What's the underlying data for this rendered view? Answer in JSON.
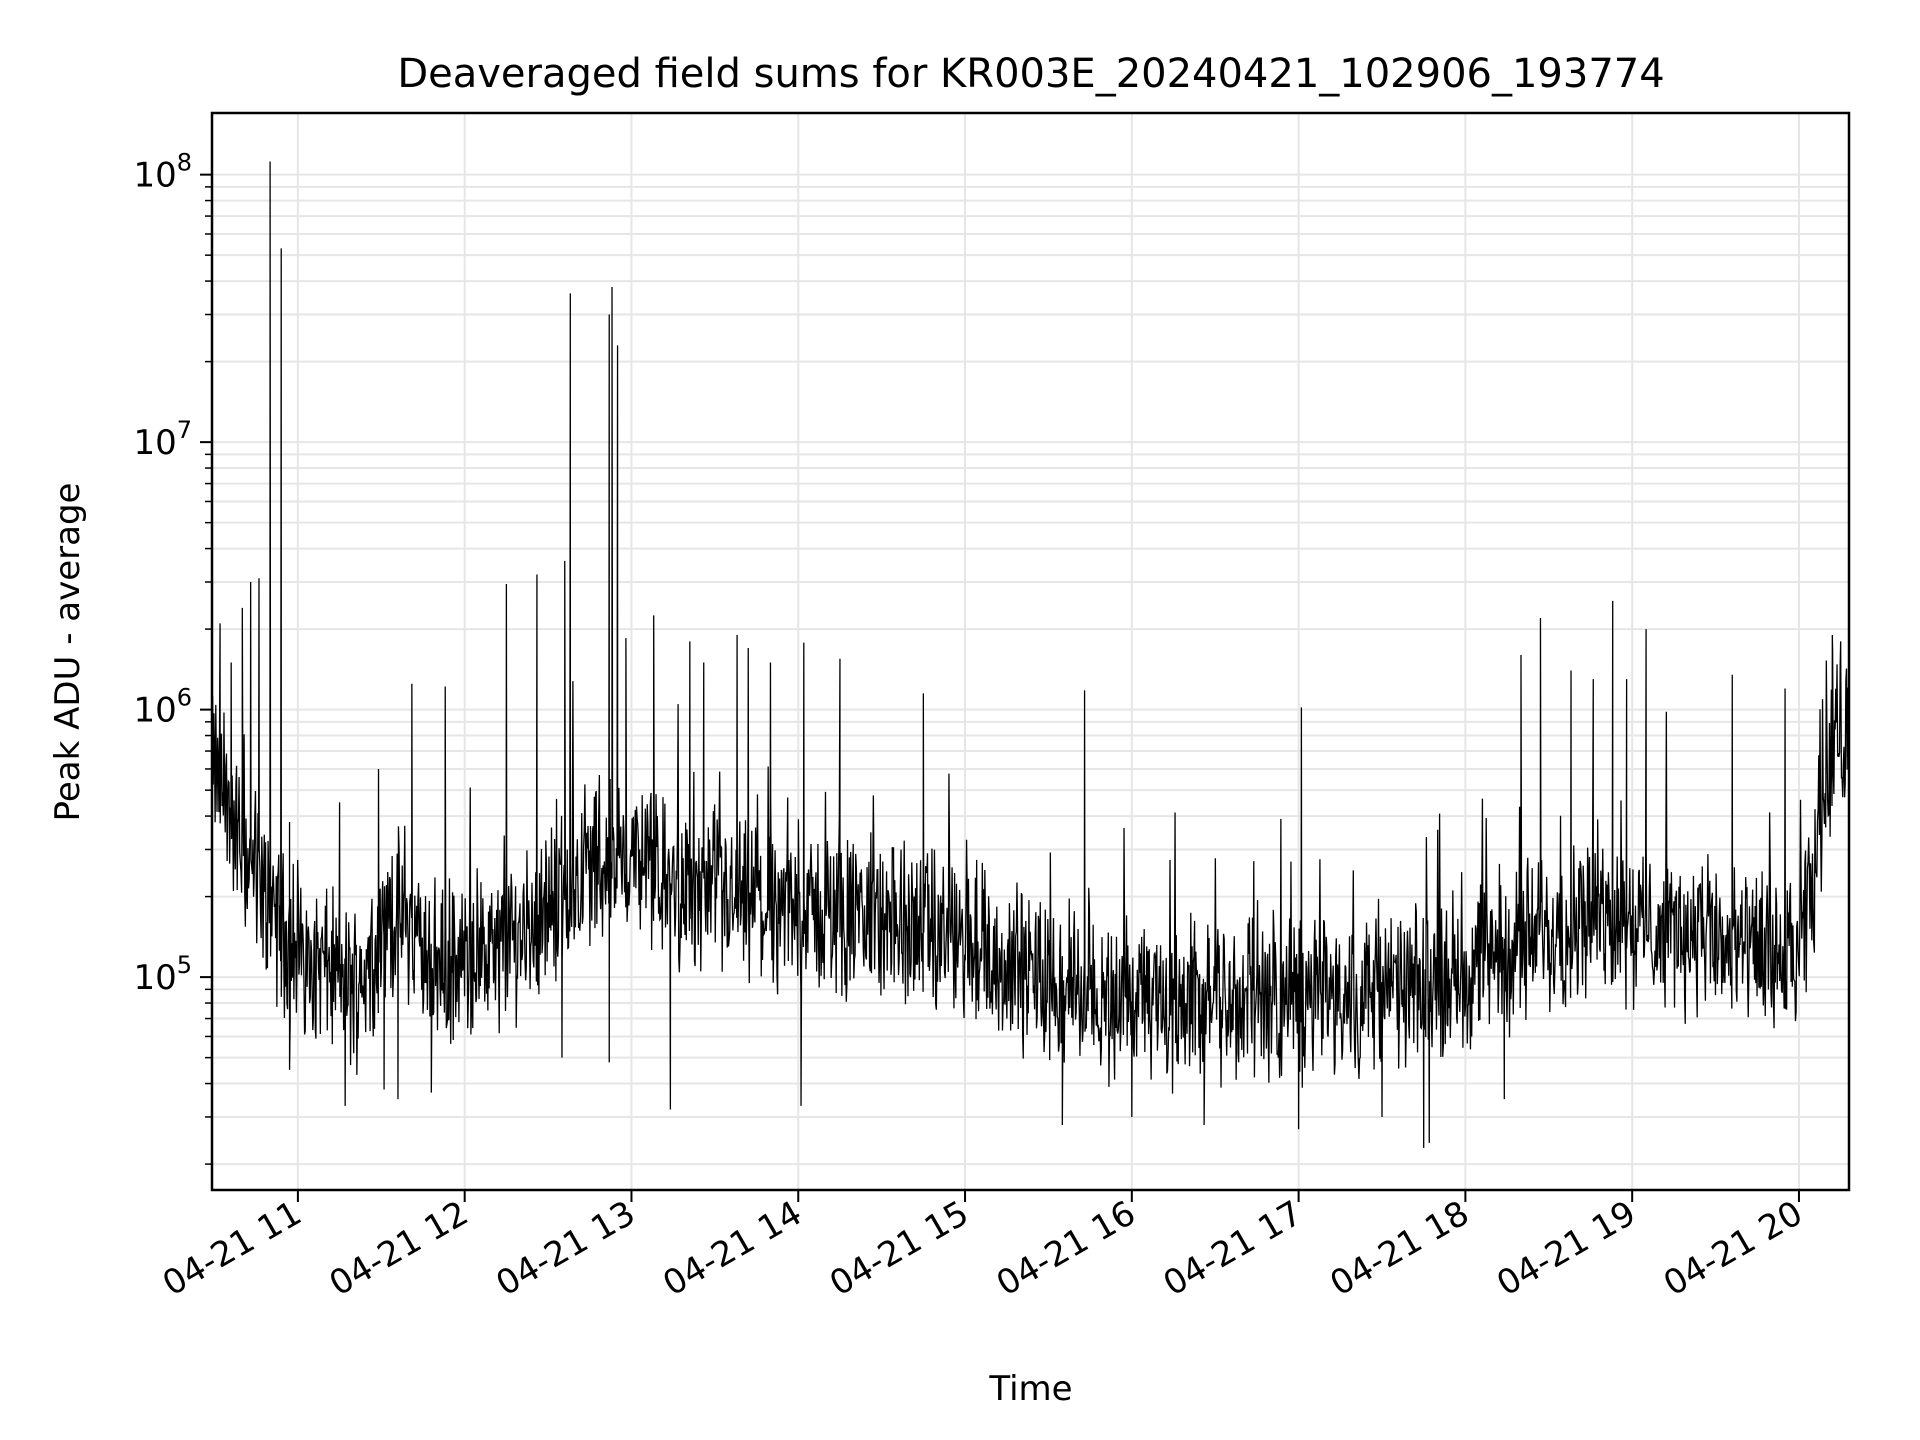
{
  "chart_data": {
    "type": "line",
    "title": "Deaveraged field sums for KR003E_20240421_102906_193774",
    "xlabel": "Time",
    "ylabel": "Peak ADU - average",
    "x_range": [
      "2024-04-21 10:29:06",
      "2024-04-21 20:18:00"
    ],
    "x_ticks": [
      "04-21 11",
      "04-21 12",
      "04-21 13",
      "04-21 14",
      "04-21 15",
      "04-21 16",
      "04-21 17",
      "04-21 18",
      "04-21 19",
      "04-21 20"
    ],
    "y_scale": "log",
    "ylim": [
      16000,
      170000000
    ],
    "y_ticks": [
      {
        "base": "10",
        "exp": "5",
        "value": 100000
      },
      {
        "base": "10",
        "exp": "6",
        "value": 1000000
      },
      {
        "base": "10",
        "exp": "7",
        "value": 10000000
      },
      {
        "base": "10",
        "exp": "8",
        "value": 100000000
      }
    ],
    "grid": "major and minor",
    "line_color": "#000000",
    "grid_color": "#e6e6e6",
    "series": [
      {
        "baseline": [
          [
            "10:30",
            600000
          ],
          [
            "10:40",
            300000
          ],
          [
            "10:50",
            180000
          ],
          [
            "11:00",
            120000
          ],
          [
            "11:10",
            110000
          ],
          [
            "11:20",
            90000
          ],
          [
            "11:35",
            180000
          ],
          [
            "11:40",
            150000
          ],
          [
            "11:50",
            110000
          ],
          [
            "12:10",
            120000
          ],
          [
            "12:30",
            180000
          ],
          [
            "12:45",
            260000
          ],
          [
            "13:00",
            280000
          ],
          [
            "13:15",
            220000
          ],
          [
            "13:45",
            180000
          ],
          [
            "14:15",
            170000
          ],
          [
            "14:45",
            150000
          ],
          [
            "15:15",
            110000
          ],
          [
            "15:45",
            85000
          ],
          [
            "16:15",
            80000
          ],
          [
            "16:45",
            80000
          ],
          [
            "17:15",
            85000
          ],
          [
            "17:45",
            90000
          ],
          [
            "18:15",
            130000
          ],
          [
            "18:45",
            170000
          ],
          [
            "19:15",
            150000
          ],
          [
            "19:45",
            120000
          ],
          [
            "20:00",
            110000
          ],
          [
            "20:05",
            220000
          ],
          [
            "20:10",
            600000
          ],
          [
            "20:18",
            900000
          ]
        ],
        "spikes": [
          [
            "10:32",
            2100000
          ],
          [
            "10:36",
            1500000
          ],
          [
            "10:40",
            2400000
          ],
          [
            "10:43",
            3000000
          ],
          [
            "10:46",
            3100000
          ],
          [
            "10:50",
            112000000
          ],
          [
            "10:54",
            53000000
          ],
          [
            "10:57",
            380000
          ],
          [
            "11:15",
            450000
          ],
          [
            "11:29",
            600000
          ],
          [
            "11:41",
            1250000
          ],
          [
            "11:53",
            1220000
          ],
          [
            "12:15",
            2950000
          ],
          [
            "12:26",
            3200000
          ],
          [
            "12:36",
            3600000
          ],
          [
            "12:38",
            36000000
          ],
          [
            "12:52",
            30000000
          ],
          [
            "12:53",
            38000000
          ],
          [
            "12:55",
            23000000
          ],
          [
            "12:58",
            1850000
          ],
          [
            "13:08",
            2250000
          ],
          [
            "13:21",
            1800000
          ],
          [
            "13:26",
            1500000
          ],
          [
            "13:38",
            1900000
          ],
          [
            "13:42",
            1700000
          ],
          [
            "13:50",
            1500000
          ],
          [
            "14:02",
            1780000
          ],
          [
            "14:15",
            1550000
          ],
          [
            "14:45",
            1150000
          ],
          [
            "15:43",
            1180000
          ],
          [
            "17:01",
            1020000
          ],
          [
            "18:20",
            1600000
          ],
          [
            "18:27",
            2200000
          ],
          [
            "18:38",
            1400000
          ],
          [
            "18:46",
            1300000
          ],
          [
            "18:53",
            2550000
          ],
          [
            "18:58",
            1300000
          ],
          [
            "19:05",
            2000000
          ],
          [
            "19:36",
            1350000
          ],
          [
            "19:55",
            1200000
          ],
          [
            "20:12",
            1900000
          ],
          [
            "20:15",
            1800000
          ]
        ],
        "dips": [
          [
            "10:57",
            45000
          ],
          [
            "11:17",
            33000
          ],
          [
            "11:31",
            38000
          ],
          [
            "11:36",
            35000
          ],
          [
            "11:48",
            37000
          ],
          [
            "12:35",
            50000
          ],
          [
            "12:52",
            48000
          ],
          [
            "13:14",
            32000
          ],
          [
            "14:01",
            33000
          ],
          [
            "15:35",
            28000
          ],
          [
            "16:00",
            30000
          ],
          [
            "16:26",
            28000
          ],
          [
            "17:00",
            27000
          ],
          [
            "17:30",
            30000
          ],
          [
            "17:45",
            23000
          ],
          [
            "17:47",
            24000
          ],
          [
            "18:14",
            35000
          ]
        ]
      }
    ]
  }
}
